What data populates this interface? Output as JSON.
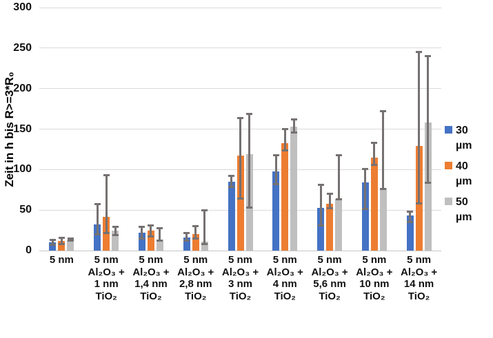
{
  "y_axis": {
    "title": "Zeit in h bis R>=3*R₀",
    "ticks": [
      0,
      50,
      100,
      150,
      200,
      250,
      300
    ]
  },
  "legend": [
    {
      "label": "30 µm",
      "color": "#4472C4"
    },
    {
      "label": "40 µm",
      "color": "#ED7D31"
    },
    {
      "label": "50 µm",
      "color": "#BFBFBF"
    }
  ],
  "colors": {
    "error_bar": "#767171",
    "gridline": "#D9D9D9",
    "background": "#FFFFFF"
  },
  "chart_data": {
    "type": "bar",
    "title": "",
    "xlabel": "",
    "ylabel": "Zeit in h bis R>=3*R₀",
    "ylim": [
      0,
      300
    ],
    "grid": true,
    "legend_position": "right",
    "error_bars": true,
    "categories": [
      "5 nm",
      "5 nm Al₂O₃ + 1 nm TiO₂",
      "5 nm Al₂O₃ + 1,4 nm TiO₂",
      "5 nm Al₂O₃ + 2,8 nm TiO₂",
      "5 nm Al₂O₃ + 3 nm TiO₂",
      "5 nm Al₂O₃ + 4 nm TiO₂",
      "5 nm Al₂O₃ + 5,6 nm TiO₂",
      "5 nm Al₂O₃ + 10 nm TiO₂",
      "5 nm Al₂O₃ + 14 nm TiO₂"
    ],
    "series": [
      {
        "name": "30 µm",
        "color": "#4472C4",
        "values": [
          10,
          32,
          22,
          16,
          85,
          98,
          53,
          84,
          43
        ],
        "error_low": [
          7,
          20,
          15,
          12,
          79,
          82,
          31,
          51,
          35
        ],
        "error_high": [
          13,
          57,
          29,
          22,
          92,
          118,
          81,
          101,
          48
        ]
      },
      {
        "name": "40 µm",
        "color": "#ED7D31",
        "values": [
          12,
          42,
          25,
          20,
          117,
          133,
          58,
          115,
          129
        ],
        "error_low": [
          8,
          22,
          17,
          15,
          64,
          124,
          52,
          106,
          58
        ],
        "error_high": [
          16,
          93,
          31,
          30,
          164,
          150,
          70,
          133,
          245
        ]
      },
      {
        "name": "50 µm",
        "color": "#BFBFBF",
        "values": [
          13,
          25,
          14,
          11,
          119,
          153,
          64,
          77,
          158
        ],
        "error_low": [
          12,
          19,
          12,
          8,
          53,
          146,
          63,
          76,
          84
        ],
        "error_high": [
          15,
          29,
          28,
          50,
          169,
          162,
          118,
          172,
          240
        ]
      }
    ]
  }
}
